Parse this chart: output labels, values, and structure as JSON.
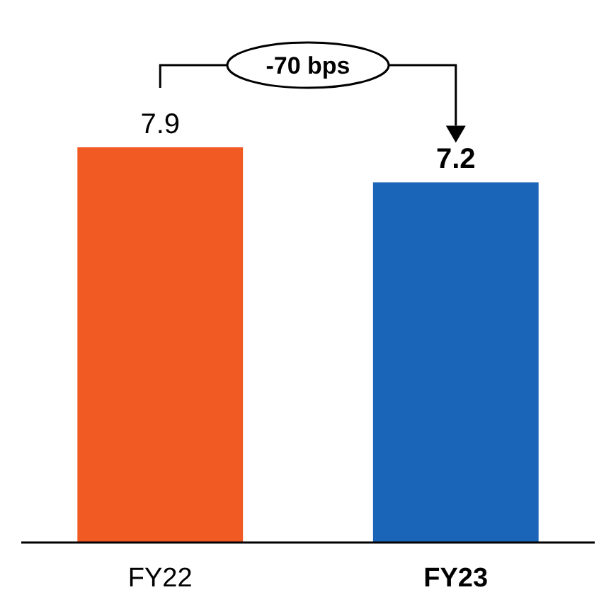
{
  "chart_data": {
    "type": "bar",
    "categories": [
      "FY22",
      "FY23"
    ],
    "values": [
      7.9,
      7.2
    ],
    "colors": [
      "#f15a22",
      "#1a65b8"
    ],
    "data_labels": true,
    "annotations": [
      "-70 bps"
    ]
  }
}
